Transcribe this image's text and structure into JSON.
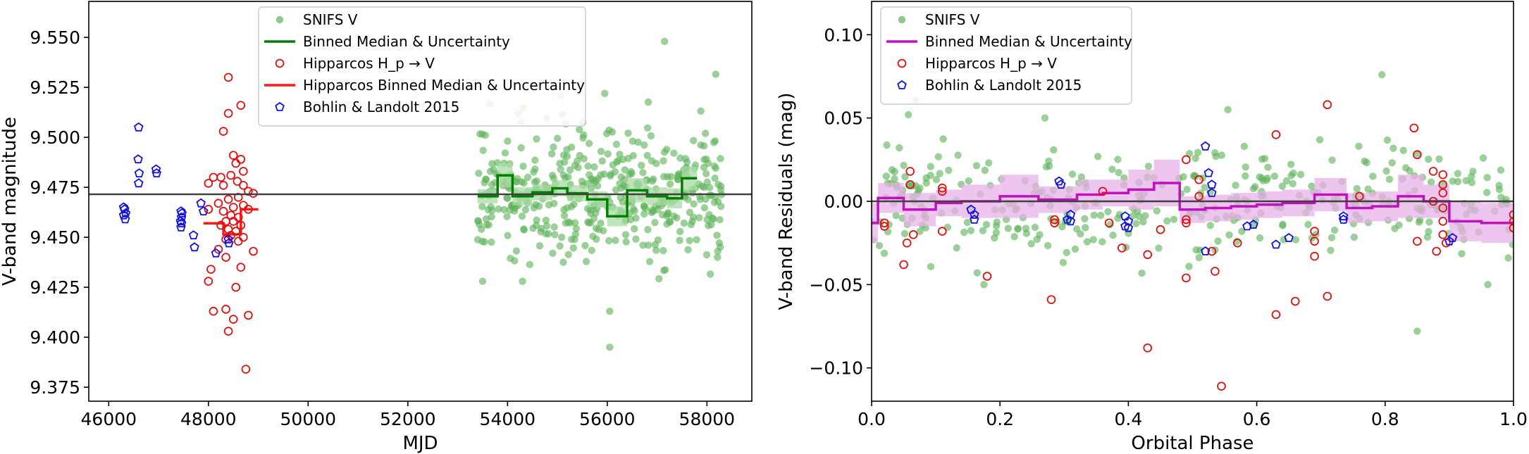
{
  "colors": {
    "snifs": "#5fb35a",
    "snifs_band": "#a9dba4",
    "snifs_binned": "#008000",
    "hipparcos": "#e11010",
    "hipparcos_binned": "#ff1a1a",
    "bohlin": "#1010e0",
    "residual_binned": "#c010c0",
    "residual_band": "#e8b2e8",
    "reference_line": "#404040",
    "axis": "#000000"
  },
  "chart_data": [
    {
      "type": "scatter",
      "id": "left",
      "xlabel": "MJD",
      "ylabel": "V-band magnitude",
      "xlim": [
        45600,
        58900
      ],
      "ylim": [
        9.368,
        9.568
      ],
      "xticks": [
        46000,
        48000,
        50000,
        52000,
        54000,
        56000,
        58000
      ],
      "xtick_labels": [
        "46000",
        "48000",
        "50000",
        "52000",
        "54000",
        "56000",
        "58000"
      ],
      "yticks": [
        9.375,
        9.4,
        9.425,
        9.45,
        9.475,
        9.5,
        9.525,
        9.55
      ],
      "ytick_labels": [
        "9.375",
        "9.400",
        "9.425",
        "9.450",
        "9.475",
        "9.500",
        "9.525",
        "9.550"
      ],
      "reference_y": 9.4715,
      "legend": {
        "location": "upper-center",
        "entries": [
          {
            "label": "SNIFS V",
            "style": "snifs"
          },
          {
            "label": "Binned Median & Uncertainty",
            "style": "snifs_binned"
          },
          {
            "label": "Hipparcos H_p → V",
            "style": "hipparcos"
          },
          {
            "label": "Hipparcos Binned Median & Uncertainty",
            "style": "hipparcos_binned"
          },
          {
            "label": "Bohlin & Landolt 2015",
            "style": "bohlin"
          }
        ]
      },
      "binned_snifs": {
        "edges": [
          53400,
          53800,
          54100,
          54500,
          54900,
          55200,
          55600,
          56000,
          56400,
          56800,
          57200,
          57500,
          57800
        ],
        "medians": [
          9.4705,
          9.481,
          9.4705,
          9.4725,
          9.4745,
          9.472,
          9.469,
          9.4605,
          9.4735,
          9.4705,
          9.4695,
          9.4795
        ],
        "uncertainties": [
          0.0035,
          0.006,
          0.0045,
          0.004,
          0.004,
          0.004,
          0.004,
          0.005,
          0.006,
          0.0045,
          0.005,
          0.006
        ]
      },
      "binned_hipparcos": {
        "edges": [
          47900,
          48300,
          48650,
          49000
        ],
        "medians": [
          9.457,
          9.4515,
          9.464
        ],
        "uncertainties": [
          0.004,
          0.004,
          0.004
        ]
      },
      "bohlin_points": [
        [
          46300,
          9.465
        ],
        [
          46320,
          9.464
        ],
        [
          46300,
          9.461
        ],
        [
          46340,
          9.462
        ],
        [
          46330,
          9.459
        ],
        [
          46600,
          9.505
        ],
        [
          46590,
          9.489
        ],
        [
          46610,
          9.482
        ],
        [
          46600,
          9.477
        ],
        [
          46950,
          9.484
        ],
        [
          46960,
          9.482
        ],
        [
          47450,
          9.463
        ],
        [
          47470,
          9.462
        ],
        [
          47460,
          9.46
        ],
        [
          47440,
          9.458
        ],
        [
          47460,
          9.457
        ],
        [
          47450,
          9.455
        ],
        [
          47700,
          9.451
        ],
        [
          47720,
          9.445
        ],
        [
          47850,
          9.467
        ],
        [
          47900,
          9.463
        ],
        [
          48150,
          9.442
        ],
        [
          48400,
          9.449
        ],
        [
          48410,
          9.447
        ]
      ],
      "hipparcos_points": [
        [
          48400,
          9.53
        ],
        [
          48650,
          9.516
        ],
        [
          48400,
          9.512
        ],
        [
          48300,
          9.503
        ],
        [
          48500,
          9.491
        ],
        [
          48550,
          9.487
        ],
        [
          48650,
          9.489
        ],
        [
          48700,
          9.483
        ],
        [
          48580,
          9.478
        ],
        [
          48450,
          9.481
        ],
        [
          48250,
          9.48
        ],
        [
          48000,
          9.477
        ],
        [
          48100,
          9.48
        ],
        [
          48300,
          9.476
        ],
        [
          48700,
          9.476
        ],
        [
          48800,
          9.473
        ],
        [
          48900,
          9.472
        ],
        [
          48600,
          9.47
        ],
        [
          48400,
          9.469
        ],
        [
          48200,
          9.467
        ],
        [
          48500,
          9.465
        ],
        [
          48700,
          9.466
        ],
        [
          48800,
          9.464
        ],
        [
          48000,
          9.464
        ],
        [
          48300,
          9.463
        ],
        [
          48450,
          9.461
        ],
        [
          48600,
          9.46
        ],
        [
          48350,
          9.458
        ],
        [
          48500,
          9.458
        ],
        [
          48250,
          9.456
        ],
        [
          48650,
          9.456
        ],
        [
          48400,
          9.454
        ],
        [
          48550,
          9.453
        ],
        [
          48450,
          9.451
        ],
        [
          48700,
          9.45
        ],
        [
          48350,
          9.449
        ],
        [
          48600,
          9.448
        ],
        [
          48900,
          9.443
        ],
        [
          48200,
          9.444
        ],
        [
          48350,
          9.44
        ],
        [
          48050,
          9.434
        ],
        [
          48000,
          9.428
        ],
        [
          48650,
          9.435
        ],
        [
          48550,
          9.425
        ],
        [
          48100,
          9.413
        ],
        [
          48350,
          9.414
        ],
        [
          48800,
          9.411
        ],
        [
          48500,
          9.409
        ],
        [
          48400,
          9.403
        ],
        [
          48750,
          9.384
        ]
      ],
      "snifs_seed": 7,
      "snifs_range": [
        53400,
        58300
      ],
      "snifs_count": 430,
      "snifs_center": 9.4715,
      "snifs_sigma": 0.016,
      "snifs_outliers": [
        [
          57150,
          9.548
        ],
        [
          56050,
          9.395
        ],
        [
          53500,
          9.428
        ],
        [
          54300,
          9.428
        ],
        [
          58200,
          9.451
        ],
        [
          56050,
          9.413
        ],
        [
          55950,
          9.522
        ]
      ]
    },
    {
      "type": "scatter",
      "id": "right",
      "xlabel": "Orbital Phase",
      "ylabel": "V-band Residuals (mag)",
      "xlim": [
        0,
        1
      ],
      "ylim": [
        -0.12,
        0.12
      ],
      "xticks": [
        0,
        0.2,
        0.4,
        0.6,
        0.8,
        1.0
      ],
      "xtick_labels": [
        "0.0",
        "0.2",
        "0.4",
        "0.6",
        "0.8",
        "1.0"
      ],
      "yticks": [
        -0.1,
        -0.05,
        0.0,
        0.05,
        0.1
      ],
      "ytick_labels": [
        "−0.10",
        "−0.05",
        "0.00",
        "0.05",
        "0.10"
      ],
      "reference_y": 0,
      "legend": {
        "location": "upper-left",
        "entries": [
          {
            "label": "SNIFS V",
            "style": "snifs"
          },
          {
            "label": "Binned Median & Uncertainty",
            "style": "residual_binned"
          },
          {
            "label": "Hipparcos H_p → V",
            "style": "hipparcos"
          },
          {
            "label": "Bohlin & Landolt 2015",
            "style": "bohlin"
          }
        ]
      },
      "binned": {
        "edges": [
          0.0,
          0.01,
          0.05,
          0.1,
          0.14,
          0.2,
          0.26,
          0.32,
          0.36,
          0.4,
          0.44,
          0.48,
          0.52,
          0.56,
          0.6,
          0.64,
          0.69,
          0.74,
          0.78,
          0.82,
          0.86,
          0.9,
          0.95,
          1.0
        ],
        "medians": [
          -0.013,
          0.002,
          -0.005,
          -0.001,
          0.0,
          0.003,
          0.001,
          0.004,
          0.005,
          0.007,
          0.011,
          -0.005,
          -0.004,
          -0.003,
          -0.002,
          -0.001,
          0.004,
          -0.004,
          -0.003,
          0.003,
          0.0,
          -0.012,
          -0.013
        ],
        "uncertainties": [
          0.012,
          0.009,
          0.01,
          0.008,
          0.01,
          0.013,
          0.008,
          0.009,
          0.008,
          0.012,
          0.014,
          0.008,
          0.008,
          0.008,
          0.008,
          0.008,
          0.01,
          0.009,
          0.009,
          0.013,
          0.01,
          0.012,
          0.012
        ]
      },
      "bohlin_points": [
        [
          0.155,
          -0.005
        ],
        [
          0.16,
          -0.008
        ],
        [
          0.16,
          -0.011
        ],
        [
          0.292,
          0.012
        ],
        [
          0.295,
          0.01
        ],
        [
          0.31,
          -0.008
        ],
        [
          0.31,
          -0.012
        ],
        [
          0.305,
          -0.011
        ],
        [
          0.395,
          -0.009
        ],
        [
          0.4,
          -0.012
        ],
        [
          0.395,
          -0.015
        ],
        [
          0.4,
          -0.016
        ],
        [
          0.52,
          0.033
        ],
        [
          0.525,
          0.017
        ],
        [
          0.53,
          0.01
        ],
        [
          0.53,
          0.005
        ],
        [
          0.52,
          -0.03
        ],
        [
          0.585,
          -0.015
        ],
        [
          0.595,
          -0.014
        ],
        [
          0.63,
          -0.026
        ],
        [
          0.65,
          -0.022
        ],
        [
          0.735,
          -0.011
        ],
        [
          0.735,
          -0.009
        ],
        [
          0.9,
          -0.024
        ],
        [
          0.905,
          -0.022
        ]
      ],
      "hipparcos_points": [
        [
          0.02,
          -0.013
        ],
        [
          0.02,
          -0.015
        ],
        [
          0.06,
          0.018
        ],
        [
          0.06,
          0.01
        ],
        [
          0.065,
          -0.02
        ],
        [
          0.055,
          -0.025
        ],
        [
          0.05,
          -0.038
        ],
        [
          0.11,
          0.008
        ],
        [
          0.11,
          0.006
        ],
        [
          0.11,
          -0.018
        ],
        [
          0.18,
          -0.045
        ],
        [
          0.28,
          -0.059
        ],
        [
          0.285,
          -0.013
        ],
        [
          0.285,
          -0.011
        ],
        [
          0.36,
          0.006
        ],
        [
          0.37,
          -0.013
        ],
        [
          0.39,
          -0.028
        ],
        [
          0.43,
          -0.032
        ],
        [
          0.43,
          -0.088
        ],
        [
          0.45,
          -0.017
        ],
        [
          0.49,
          0.025
        ],
        [
          0.49,
          -0.011
        ],
        [
          0.49,
          -0.013
        ],
        [
          0.49,
          -0.046
        ],
        [
          0.51,
          0.013
        ],
        [
          0.51,
          0.003
        ],
        [
          0.53,
          -0.03
        ],
        [
          0.535,
          -0.042
        ],
        [
          0.545,
          -0.111
        ],
        [
          0.57,
          -0.025
        ],
        [
          0.63,
          0.04
        ],
        [
          0.63,
          -0.068
        ],
        [
          0.66,
          -0.06
        ],
        [
          0.69,
          -0.018
        ],
        [
          0.69,
          -0.024
        ],
        [
          0.69,
          -0.033
        ],
        [
          0.71,
          0.058
        ],
        [
          0.71,
          -0.057
        ],
        [
          0.76,
          0.003
        ],
        [
          0.845,
          0.044
        ],
        [
          0.85,
          0.028
        ],
        [
          0.85,
          -0.024
        ],
        [
          0.875,
          0.018
        ],
        [
          0.875,
          0.0
        ],
        [
          0.88,
          -0.03
        ],
        [
          0.89,
          0.016
        ],
        [
          0.89,
          0.01
        ],
        [
          0.89,
          0.005
        ],
        [
          0.89,
          -0.004
        ],
        [
          0.89,
          -0.012
        ],
        [
          0.89,
          -0.02
        ],
        [
          0.895,
          -0.025
        ],
        [
          1.0,
          -0.008
        ],
        [
          1.0,
          -0.012
        ],
        [
          1.0,
          -0.016
        ]
      ],
      "snifs_seed": 11,
      "snifs_range": [
        0.0,
        1.0
      ],
      "snifs_count": 380,
      "snifs_center": 0.0,
      "snifs_sigma": 0.017,
      "snifs_outliers": [
        [
          0.795,
          0.076
        ],
        [
          0.27,
          0.05
        ],
        [
          0.555,
          0.055
        ],
        [
          0.85,
          -0.078
        ],
        [
          0.96,
          -0.05
        ],
        [
          0.175,
          -0.05
        ]
      ]
    }
  ]
}
